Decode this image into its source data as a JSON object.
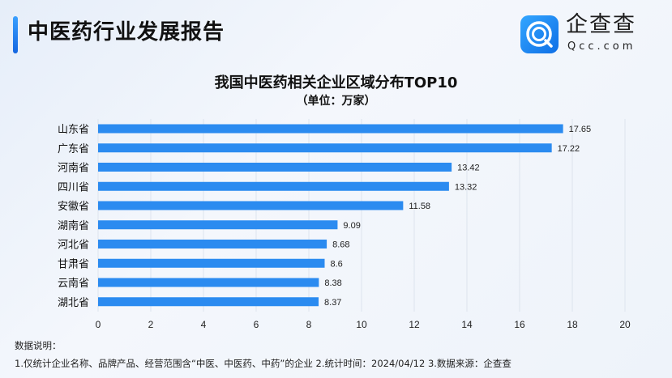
{
  "header": {
    "title": "中医药行业发展报告",
    "brand": "企查查",
    "brand_sub": "Qcc.com"
  },
  "colors": {
    "bar": "#2b8bf0",
    "accent": "#1a73e8"
  },
  "chart_data": {
    "type": "bar",
    "orientation": "horizontal",
    "title": "我国中医药相关企业区域分布TOP10",
    "subtitle": "（单位：万家）",
    "categories": [
      "山东省",
      "广东省",
      "河南省",
      "四川省",
      "安徽省",
      "湖南省",
      "河北省",
      "甘肃省",
      "云南省",
      "湖北省"
    ],
    "values": [
      17.65,
      17.22,
      13.42,
      13.32,
      11.58,
      9.09,
      8.68,
      8.6,
      8.38,
      8.37
    ],
    "xlim": [
      0,
      20
    ],
    "xticks": [
      "0",
      "2",
      "4",
      "6",
      "8",
      "10",
      "12",
      "14",
      "16",
      "18",
      "20"
    ],
    "grid": true
  },
  "notes": {
    "heading": "数据说明：",
    "line": "1.仅统计企业名称、品牌产品、经营范围含“中医、中医药、中药”的企业  2.统计时间：2024/04/12   3.数据来源：企查查"
  }
}
